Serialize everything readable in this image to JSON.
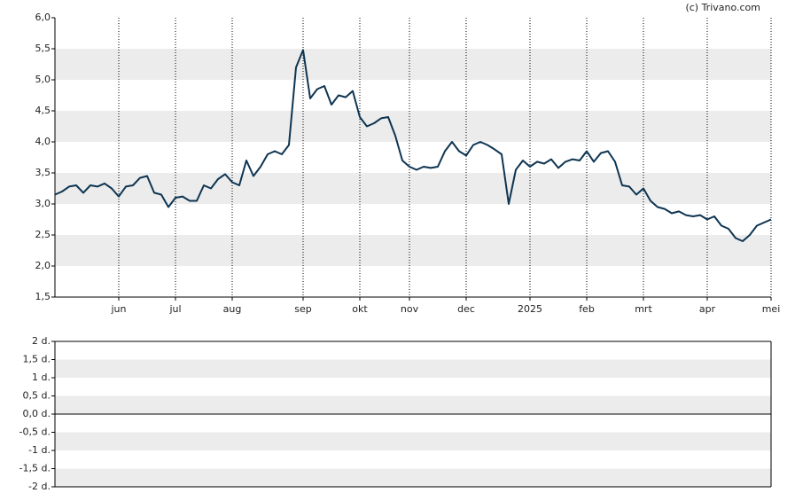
{
  "watermark": "(c) Trivano.com",
  "chart_data": [
    {
      "type": "line",
      "categories": [
        null,
        null,
        null,
        null,
        null,
        null,
        null,
        null,
        null,
        "jun",
        null,
        null,
        null,
        null,
        null,
        null,
        null,
        "jul",
        null,
        null,
        null,
        null,
        null,
        null,
        null,
        "aug",
        null,
        null,
        null,
        null,
        null,
        null,
        null,
        null,
        null,
        "sep",
        null,
        null,
        null,
        null,
        null,
        null,
        null,
        "okt",
        null,
        null,
        null,
        null,
        null,
        null,
        "nov",
        null,
        null,
        null,
        null,
        null,
        null,
        null,
        "dec",
        null,
        null,
        null,
        null,
        null,
        null,
        null,
        null,
        "2025",
        null,
        null,
        null,
        null,
        null,
        null,
        null,
        "feb",
        null,
        null,
        null,
        null,
        null,
        null,
        null,
        "mrt",
        null,
        null,
        null,
        null,
        null,
        null,
        null,
        null,
        "apr",
        null,
        null,
        null,
        null,
        null,
        null,
        null,
        null,
        "mei"
      ],
      "values": [
        3.15,
        3.2,
        3.28,
        3.3,
        3.18,
        3.3,
        3.28,
        3.33,
        3.25,
        3.12,
        3.28,
        3.3,
        3.42,
        3.45,
        3.18,
        3.15,
        2.95,
        3.1,
        3.12,
        3.05,
        3.05,
        3.3,
        3.25,
        3.4,
        3.48,
        3.35,
        3.3,
        3.7,
        3.45,
        3.6,
        3.8,
        3.85,
        3.8,
        3.95,
        5.2,
        5.48,
        4.7,
        4.85,
        4.9,
        4.6,
        4.75,
        4.72,
        4.82,
        4.4,
        4.25,
        4.3,
        4.38,
        4.4,
        4.1,
        3.7,
        3.6,
        3.55,
        3.6,
        3.58,
        3.6,
        3.85,
        4.0,
        3.85,
        3.78,
        3.95,
        4.0,
        3.95,
        3.88,
        3.8,
        3.0,
        3.55,
        3.7,
        3.6,
        3.68,
        3.65,
        3.72,
        3.58,
        3.68,
        3.72,
        3.7,
        3.85,
        3.68,
        3.82,
        3.85,
        3.68,
        3.3,
        3.28,
        3.15,
        3.25,
        3.05,
        2.95,
        2.92,
        2.85,
        2.88,
        2.82,
        2.8,
        2.82,
        2.75,
        2.8,
        2.65,
        2.6,
        2.45,
        2.4,
        2.5,
        2.65,
        2.7,
        2.75
      ],
      "color": "#0e3552",
      "ylim": [
        1.5,
        6.0
      ],
      "yticks": [
        {
          "value": 1.5,
          "label": "1,5"
        },
        {
          "value": 2.0,
          "label": "2,0"
        },
        {
          "value": 2.5,
          "label": "2,5"
        },
        {
          "value": 3.0,
          "label": "3,0"
        },
        {
          "value": 3.5,
          "label": "3,5"
        },
        {
          "value": 4.0,
          "label": "4,0"
        },
        {
          "value": 4.5,
          "label": "4,5"
        },
        {
          "value": 5.0,
          "label": "5,0"
        },
        {
          "value": 5.5,
          "label": "5,5"
        },
        {
          "value": 6.0,
          "label": "6,0"
        }
      ]
    },
    {
      "type": "line",
      "ylim": [
        -2,
        2
      ],
      "yticks": [
        {
          "value": -2,
          "label": "-2 d."
        },
        {
          "value": -1.5,
          "label": "-1,5 d."
        },
        {
          "value": -1,
          "label": "-1 d."
        },
        {
          "value": -0.5,
          "label": "-0,5 d."
        },
        {
          "value": 0,
          "label": "0,0 d."
        },
        {
          "value": 0.5,
          "label": "0,5 d."
        },
        {
          "value": 1,
          "label": "1 d."
        },
        {
          "value": 1.5,
          "label": "1,5 d."
        },
        {
          "value": 2,
          "label": "2 d."
        }
      ]
    }
  ]
}
